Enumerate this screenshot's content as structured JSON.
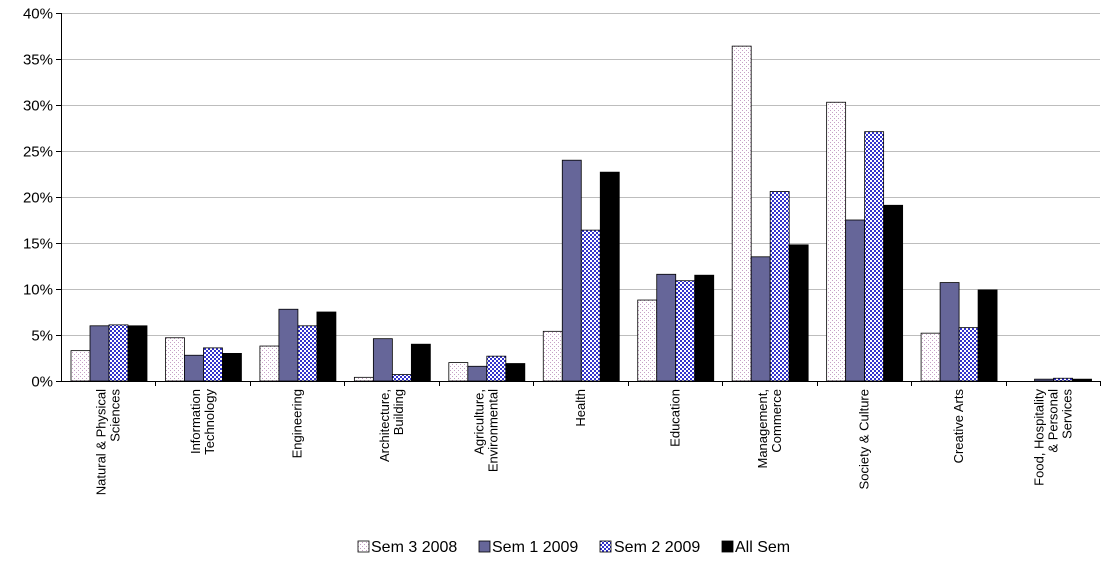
{
  "chart_data": {
    "type": "bar",
    "ylim": [
      0,
      40
    ],
    "yticks": [
      "0%",
      "5%",
      "10%",
      "15%",
      "20%",
      "25%",
      "30%",
      "35%",
      "40%"
    ],
    "grid": true,
    "legend_position": "bottom",
    "categories": [
      [
        "Natural & Physical",
        "Sciences"
      ],
      [
        "Information",
        "Technology"
      ],
      [
        "Engineering"
      ],
      [
        "Architecture,",
        "Building"
      ],
      [
        "Agriculture,",
        "Environmental"
      ],
      [
        "Health"
      ],
      [
        "Education"
      ],
      [
        "Management,",
        "Commerce"
      ],
      [
        "Society & Culture"
      ],
      [
        "Creative Arts"
      ],
      [
        "Food, Hospitality",
        "& Personal",
        "Services"
      ]
    ],
    "series": [
      {
        "name": "Sem 3 2008",
        "pattern": "dots",
        "color": "#ffffff",
        "accent": "#c6a0c6",
        "values": [
          3.3,
          4.7,
          3.8,
          0.4,
          2.0,
          5.4,
          8.8,
          36.4,
          30.3,
          5.2,
          0.0
        ]
      },
      {
        "name": "Sem 1 2009",
        "pattern": "solid",
        "color": "#666699",
        "values": [
          6.0,
          2.8,
          7.8,
          4.6,
          1.6,
          24.0,
          11.6,
          13.5,
          17.5,
          10.7,
          0.2
        ]
      },
      {
        "name": "Sem 2 2009",
        "pattern": "checker",
        "color": "#ffffff",
        "accent": "#3333cc",
        "values": [
          6.1,
          3.6,
          6.0,
          0.7,
          2.7,
          16.4,
          10.9,
          20.6,
          27.1,
          5.8,
          0.3
        ]
      },
      {
        "name": "All Sem",
        "pattern": "solid",
        "color": "#000000",
        "values": [
          6.0,
          3.0,
          7.5,
          4.0,
          1.9,
          22.7,
          11.5,
          14.8,
          19.1,
          9.9,
          0.2
        ]
      }
    ]
  }
}
